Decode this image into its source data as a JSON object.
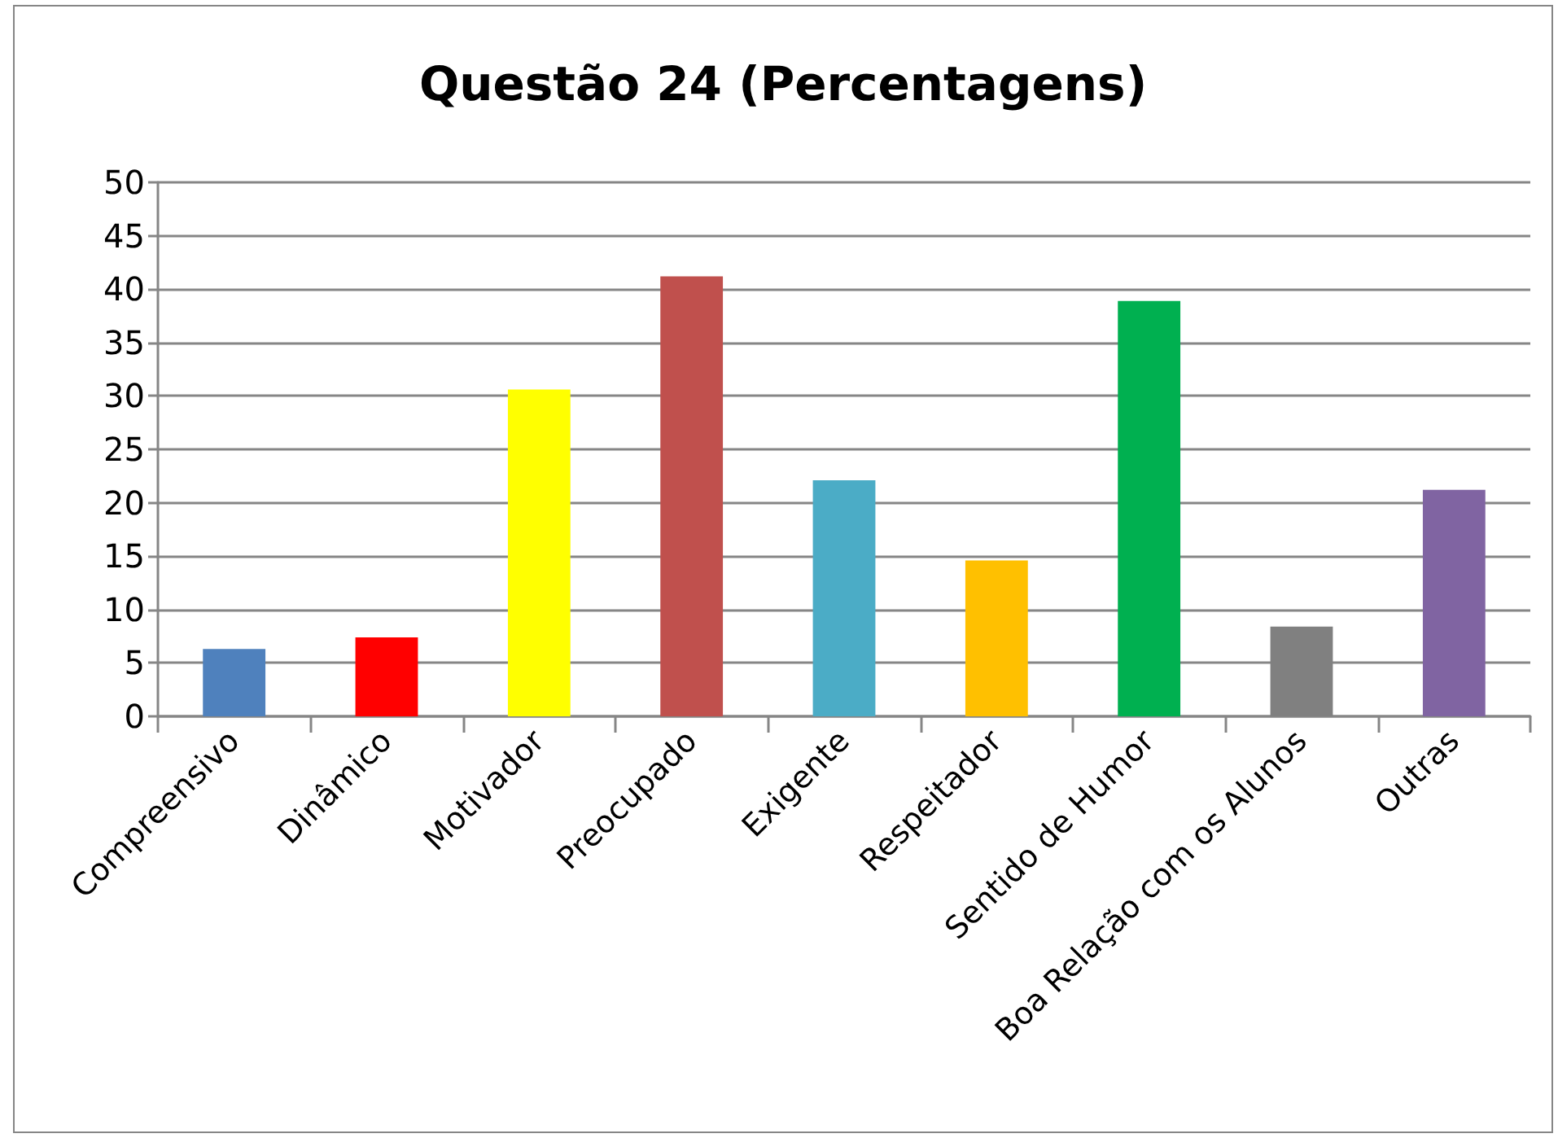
{
  "chart_data": {
    "type": "bar",
    "title": "Questão 24 (Percentagens)",
    "categories": [
      "Compreensivo",
      "Dinâmico",
      "Motivador",
      "Preocupado",
      "Exigente",
      "Respeitador",
      "Sentido de Humor",
      "Boa Relação com os Alunos",
      "Outras"
    ],
    "values": [
      6.3,
      7.4,
      30.6,
      41.2,
      22.1,
      14.6,
      38.9,
      8.4,
      21.2
    ],
    "colors": [
      "#4f81bd",
      "#ff0000",
      "#ffff00",
      "#c0504d",
      "#4bacc6",
      "#ffc000",
      "#00b050",
      "#808080",
      "#8064a2"
    ],
    "ylim": [
      0,
      50
    ],
    "yticks": [
      0,
      5,
      10,
      15,
      20,
      25,
      30,
      35,
      40,
      45,
      50
    ],
    "grid": "y"
  }
}
